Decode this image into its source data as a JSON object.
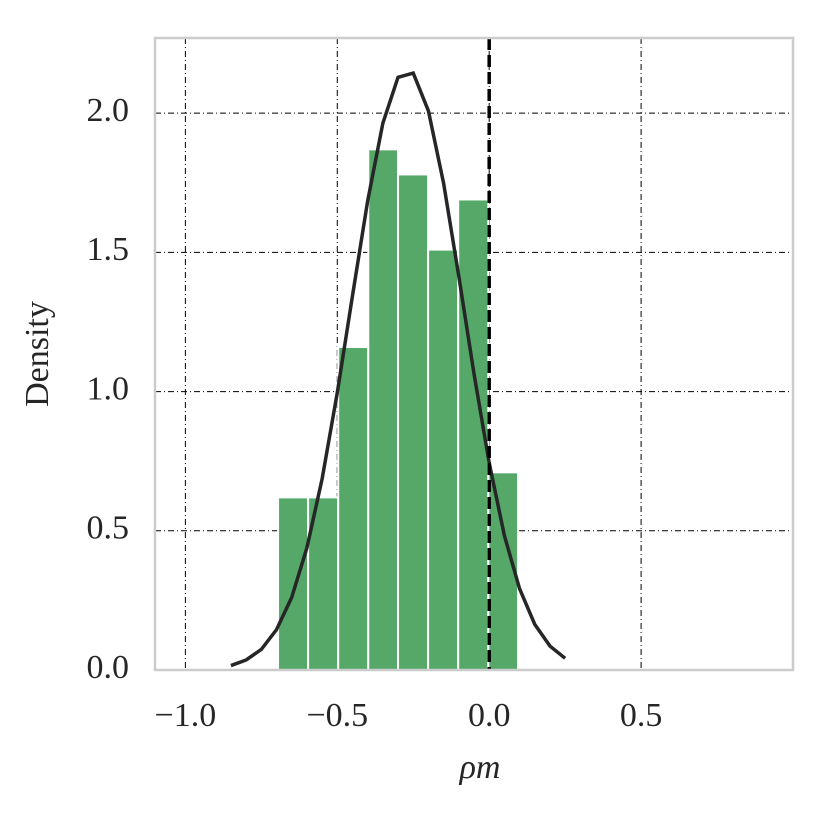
{
  "chart_data": {
    "type": "histogram",
    "xlabel": "ρm",
    "ylabel": "Density",
    "bins": [
      -0.695,
      -0.596,
      -0.497,
      -0.398,
      -0.3,
      -0.201,
      -0.102,
      -0.003,
      0.095
    ],
    "values": [
      0.62,
      0.62,
      1.16,
      1.87,
      1.78,
      1.51,
      1.69,
      0.71
    ],
    "color": "#55a868",
    "curve": {
      "color": "#262626",
      "x": [
        -0.85,
        -0.8,
        -0.75,
        -0.7,
        -0.65,
        -0.6,
        -0.55,
        -0.5,
        -0.45,
        -0.4,
        -0.35,
        -0.3,
        -0.25,
        -0.2,
        -0.15,
        -0.1,
        -0.05,
        0.0,
        0.05,
        0.1,
        0.15,
        0.2,
        0.25
      ],
      "values": [
        0.016,
        0.036,
        0.074,
        0.145,
        0.261,
        0.439,
        0.686,
        0.996,
        1.344,
        1.685,
        1.964,
        2.129,
        2.144,
        2.008,
        1.748,
        1.414,
        1.064,
        0.744,
        0.483,
        0.292,
        0.164,
        0.086,
        0.042
      ]
    },
    "vline": 0,
    "xlim": [
      -1.1,
      1.0
    ],
    "ylim": [
      0,
      2.27
    ],
    "xticks": [
      {
        "value": -1.0,
        "label": "−1.0"
      },
      {
        "value": -0.5,
        "label": "−0.5"
      },
      {
        "value": 0,
        "label": "0.0"
      },
      0.5
    ],
    "yticks": [
      {
        "value": 0,
        "label": "0.0"
      },
      0.5,
      {
        "value": 1,
        "label": "1.0"
      },
      1.5,
      {
        "value": 2,
        "label": "2.0"
      }
    ],
    "grid": true
  }
}
